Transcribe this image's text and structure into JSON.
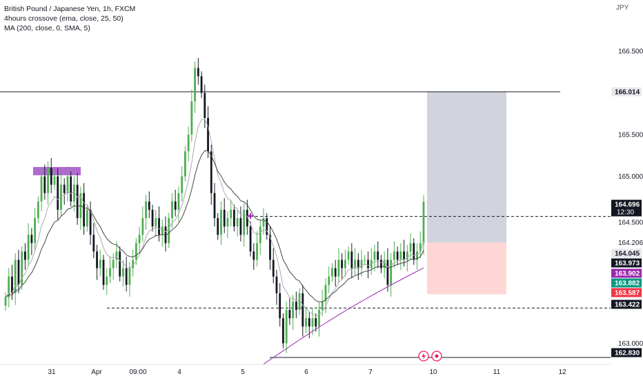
{
  "header": {
    "title": "British Pound / Japanese Yen, 1h, FXCM",
    "indicator1": "4hours crossove (ema, close, 25, 50)",
    "indicator2": "MA (200, close, 0, SMA, 5)",
    "currency": "JPY"
  },
  "colors": {
    "up": "#4caf50",
    "down": "#131722",
    "ma200": "#9c27b0",
    "ema_slow": "#444444",
    "ema_fast": "#aaaaaa",
    "stop_zone": "#d1d4dc",
    "target_zone": "#ffd6d6",
    "supply_box": "#b06ad0",
    "label_red": "#f23645",
    "label_green": "#089981",
    "label_purple": "#9c27b0",
    "label_dark": "#131722"
  },
  "chart_data": {
    "type": "candlestick",
    "symbol": "GBPJPY",
    "timeframe": "1h",
    "y_ticks": [
      "166.500",
      "165.500",
      "165.000",
      "164.500",
      "164.206",
      "163.000"
    ],
    "x_ticks": [
      "31",
      "Apr",
      "09:00",
      "4",
      "5",
      "6",
      "7",
      "10",
      "11",
      "12"
    ],
    "ylim": [
      162.75,
      166.95
    ],
    "price_labels": [
      {
        "text": "166.014",
        "style": "light"
      },
      {
        "text": "164.696",
        "sub": "12:30",
        "style": "dark"
      },
      {
        "text": "164.045",
        "style": "light"
      },
      {
        "text": "163.973",
        "style": "dark"
      },
      {
        "text": "163.902",
        "style": "purple"
      },
      {
        "text": "163.882",
        "style": "green"
      },
      {
        "text": "163.587",
        "style": "red"
      },
      {
        "text": "163.422",
        "style": "dark"
      },
      {
        "text": "162.830",
        "style": "dark"
      }
    ],
    "levels": [
      {
        "name": "resistance",
        "price": 166.014,
        "style": "solid"
      },
      {
        "name": "entry",
        "price": 164.52,
        "style": "dashed"
      },
      {
        "name": "support",
        "price": 163.422,
        "style": "dashed"
      },
      {
        "name": "low",
        "price": 162.83,
        "style": "solid"
      }
    ],
    "position": {
      "stop_top": 166.014,
      "entry_high": 164.206,
      "target_low": 163.587
    },
    "closes": [
      163.55,
      163.8,
      163.6,
      164.0,
      163.7,
      164.1,
      164.0,
      164.3,
      164.2,
      164.5,
      164.7,
      165.0,
      164.8,
      165.1,
      164.9,
      165.0,
      164.6,
      164.9,
      164.8,
      165.0,
      164.7,
      164.9,
      164.5,
      164.8,
      164.4,
      164.6,
      164.3,
      164.1,
      163.9,
      164.0,
      163.7,
      163.8,
      163.9,
      164.0,
      164.1,
      163.8,
      163.9,
      163.7,
      163.9,
      164.0,
      164.2,
      164.3,
      164.5,
      164.7,
      164.6,
      164.4,
      164.5,
      164.3,
      164.4,
      164.2,
      164.5,
      164.7,
      164.6,
      164.8,
      165.0,
      165.3,
      165.5,
      165.9,
      166.3,
      166.2,
      166.0,
      165.7,
      165.3,
      164.8,
      164.5,
      164.3,
      164.6,
      164.4,
      164.5,
      164.6,
      164.4,
      164.5,
      164.3,
      164.6,
      164.4,
      164.1,
      164.0,
      164.2,
      164.4,
      164.5,
      164.3,
      164.0,
      163.8,
      163.6,
      163.3,
      163.0,
      163.4,
      163.3,
      163.5,
      163.4,
      163.6,
      163.2,
      163.3,
      163.2,
      163.3,
      163.2,
      163.4,
      163.5,
      163.7,
      163.8,
      163.9,
      163.8,
      164.0,
      163.9,
      164.0,
      164.1,
      163.9,
      164.0,
      163.9,
      164.0,
      164.0,
      163.9,
      164.0,
      164.1,
      164.0,
      163.9,
      164.0,
      163.7,
      164.0,
      164.1,
      164.0,
      164.1,
      164.0,
      164.1,
      164.2,
      164.0,
      164.1,
      164.2,
      164.696
    ]
  },
  "icons": {
    "lightning": "lightning-icon",
    "event": "event-dot-icon"
  }
}
